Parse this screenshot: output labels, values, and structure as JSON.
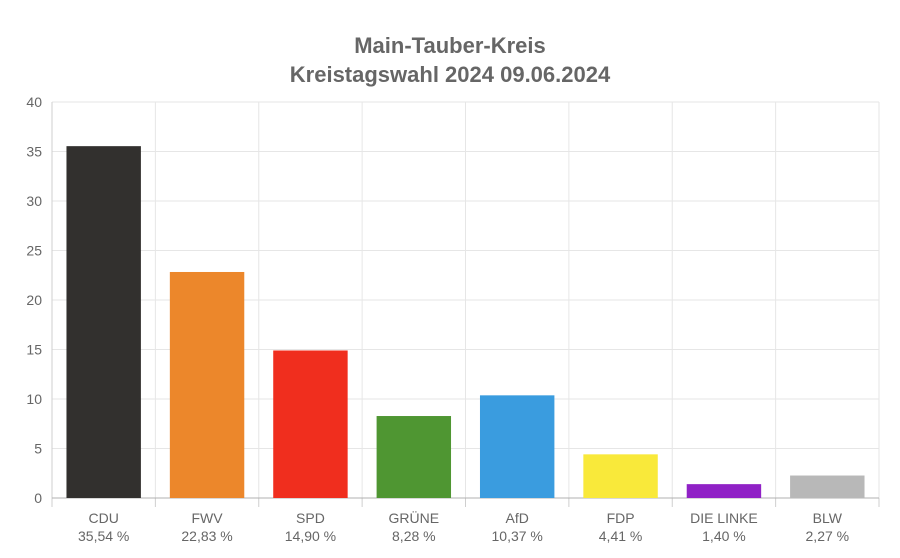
{
  "chart_data": {
    "type": "bar",
    "title": [
      "Main-Tauber-Kreis",
      "Kreistagswahl 2024 09.06.2024"
    ],
    "xlabel": "",
    "ylabel": "",
    "ylim": [
      0,
      40
    ],
    "yticks": [
      0,
      5,
      10,
      15,
      20,
      25,
      30,
      35,
      40
    ],
    "grid": true,
    "legend": "none",
    "categories": [
      "CDU",
      "FWV",
      "SPD",
      "GRÜNE",
      "AfD",
      "FDP",
      "DIE LINKE",
      "BLW"
    ],
    "values": [
      35.54,
      22.83,
      14.9,
      8.28,
      10.37,
      4.41,
      1.4,
      2.27
    ],
    "value_labels": [
      "35,54 %",
      "22,83 %",
      "14,90 %",
      "8,28 %",
      "10,37 %",
      "4,41 %",
      "1,40 %",
      "2,27 %"
    ],
    "colors": [
      "#32302e",
      "#ec872b",
      "#f02e1e",
      "#4f9632",
      "#3a9cdf",
      "#f9e93a",
      "#9021c6",
      "#b8b8b8"
    ]
  }
}
